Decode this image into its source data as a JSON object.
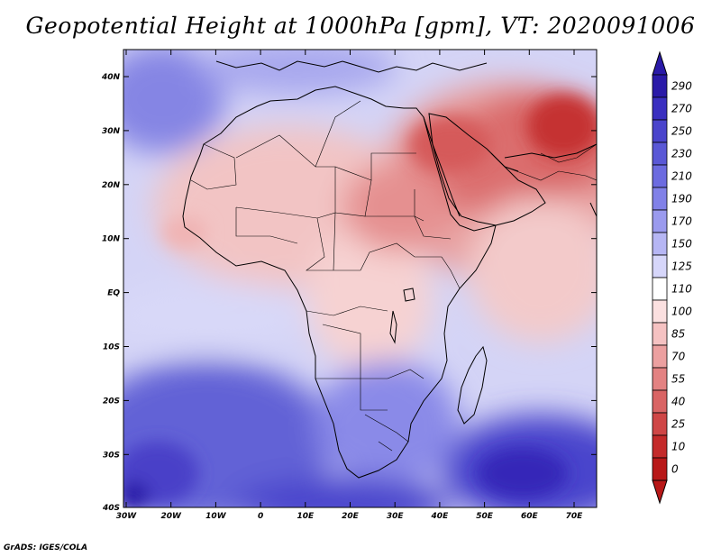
{
  "title": "Geopotential Height at 1000hPa [gpm], VT: 2020091006",
  "credit": "GrADS: IGES/COLA",
  "axes": {
    "lat_labels": [
      "40N",
      "30N",
      "20N",
      "10N",
      "EQ",
      "10S",
      "20S",
      "30S",
      "40S"
    ],
    "lon_labels": [
      "30W",
      "20W",
      "10W",
      "0",
      "10E",
      "20E",
      "30E",
      "40E",
      "50E",
      "60E",
      "70E"
    ]
  },
  "colorbar": {
    "levels": [
      "290",
      "270",
      "250",
      "230",
      "210",
      "190",
      "170",
      "150",
      "125",
      "110",
      "100",
      "85",
      "70",
      "55",
      "40",
      "25",
      "10",
      "0"
    ],
    "colors": [
      "#2a1aa8",
      "#3a2fc0",
      "#4a44cc",
      "#5a58d6",
      "#6c6be0",
      "#8181e8",
      "#9a9aee",
      "#b6b6f4",
      "#d6d6fa",
      "#ffffff",
      "#fbe0e0",
      "#f5c2c2",
      "#eca0a0",
      "#e38282",
      "#d96464",
      "#cf4646",
      "#c42a2a",
      "#b81818"
    ]
  },
  "chart_data": {
    "type": "heatmap",
    "title": "Geopotential Height at 1000hPa [gpm], VT: 2020091006",
    "variable": "Geopotential Height at 1000hPa",
    "units": "gpm",
    "valid_time": "2020091006",
    "lon_range": [
      -30,
      75
    ],
    "lat_range": [
      -40,
      45
    ],
    "color_levels": [
      0,
      10,
      25,
      40,
      55,
      70,
      85,
      100,
      110,
      125,
      150,
      170,
      190,
      210,
      230,
      250,
      270,
      290
    ],
    "regions": [
      {
        "name": "Middle East / Arabian Peninsula",
        "approx_value": 40
      },
      {
        "name": "Arabian Sea / Indian Ocean north",
        "approx_value": 70
      },
      {
        "name": "Sahara / West Africa",
        "approx_value": 90
      },
      {
        "name": "Central Africa",
        "approx_value": 100
      },
      {
        "name": "Equatorial Atlantic",
        "approx_value": 130
      },
      {
        "name": "Southern Africa",
        "approx_value": 190
      },
      {
        "name": "South Atlantic high",
        "approx_value": 250
      },
      {
        "name": "South Indian Ocean high",
        "approx_value": 270
      }
    ]
  }
}
